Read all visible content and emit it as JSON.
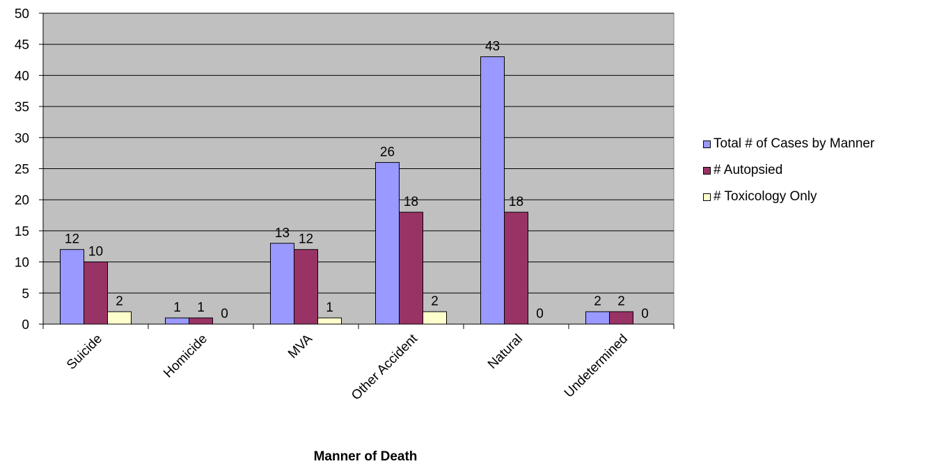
{
  "chart_data": {
    "type": "bar",
    "title": "",
    "xlabel": "Manner of Death",
    "ylabel": "",
    "ylim": [
      0,
      50
    ],
    "yticks": [
      0,
      5,
      10,
      15,
      20,
      25,
      30,
      35,
      40,
      45,
      50
    ],
    "grid": true,
    "legend_position": "right",
    "plot_background": "#c0c0c0",
    "categories": [
      "Suicide",
      "Homicide",
      "MVA",
      "Other Accident",
      "Natural",
      "Undetermined"
    ],
    "series": [
      {
        "name": "Total # of Cases by Manner",
        "color": "#9999ff",
        "values": [
          12,
          1,
          13,
          26,
          43,
          2
        ]
      },
      {
        "name": "# Autopsied",
        "color": "#993366",
        "values": [
          10,
          1,
          12,
          18,
          18,
          2
        ]
      },
      {
        "name": "# Toxicology Only",
        "color": "#ffffcc",
        "values": [
          2,
          0,
          1,
          2,
          0,
          0
        ]
      }
    ]
  }
}
